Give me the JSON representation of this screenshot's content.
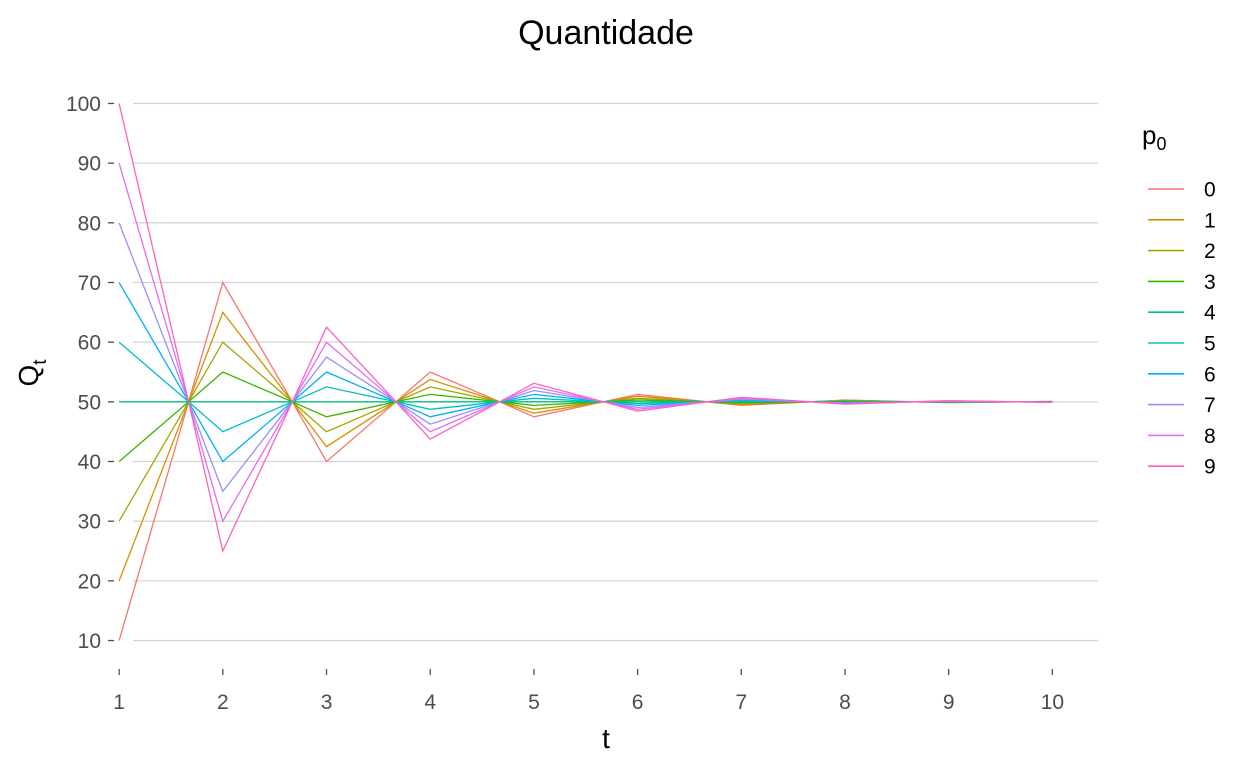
{
  "chart_data": {
    "type": "line",
    "title": "Quantidade",
    "xlabel": "t",
    "ylabel_main": "Q",
    "ylabel_sub": "t",
    "legend_title_main": "p",
    "legend_title_sub": "0",
    "legend_position": "right",
    "grid": "horizontal-major",
    "x_ticks": [
      1,
      2,
      3,
      4,
      5,
      6,
      7,
      8,
      9,
      10
    ],
    "y_ticks": [
      10,
      20,
      30,
      40,
      50,
      60,
      70,
      80,
      90,
      100
    ],
    "xlim": [
      0.96,
      10.44
    ],
    "ylim": [
      5.4,
      104.6
    ],
    "series": [
      {
        "name": "0",
        "color": "#F8766D",
        "points": [
          [
            1,
            10
          ],
          [
            1.67,
            50
          ],
          [
            2,
            70
          ],
          [
            2.67,
            50
          ],
          [
            3,
            40
          ],
          [
            3.67,
            50
          ],
          [
            4,
            55
          ],
          [
            4.67,
            50
          ],
          [
            5,
            47.5
          ],
          [
            5.67,
            50
          ],
          [
            6,
            51.25
          ],
          [
            6.67,
            50
          ],
          [
            7,
            49.4
          ],
          [
            7.67,
            50
          ],
          [
            8,
            50.3
          ],
          [
            8.67,
            50
          ],
          [
            9,
            49.85
          ],
          [
            9.67,
            50
          ],
          [
            10,
            50.08
          ]
        ]
      },
      {
        "name": "1",
        "color": "#D89000",
        "points": [
          [
            1,
            20
          ],
          [
            1.67,
            50
          ],
          [
            2,
            65
          ],
          [
            2.67,
            50
          ],
          [
            3,
            42.5
          ],
          [
            3.67,
            50
          ],
          [
            4,
            53.75
          ],
          [
            4.67,
            50
          ],
          [
            5,
            48.1
          ],
          [
            5.67,
            50
          ],
          [
            6,
            50.95
          ],
          [
            6.67,
            50
          ],
          [
            7,
            49.5
          ],
          [
            7.67,
            50
          ],
          [
            8,
            50.25
          ],
          [
            8.67,
            50
          ],
          [
            9,
            49.9
          ],
          [
            9.67,
            50
          ],
          [
            10,
            50.06
          ]
        ]
      },
      {
        "name": "2",
        "color": "#A3A500",
        "points": [
          [
            1,
            30
          ],
          [
            1.67,
            50
          ],
          [
            2,
            60
          ],
          [
            2.67,
            50
          ],
          [
            3,
            45
          ],
          [
            3.67,
            50
          ],
          [
            4,
            52.5
          ],
          [
            4.67,
            50
          ],
          [
            5,
            48.75
          ],
          [
            5.67,
            50
          ],
          [
            6,
            50.6
          ],
          [
            6.67,
            50
          ],
          [
            7,
            49.7
          ],
          [
            7.67,
            50
          ],
          [
            8,
            50.15
          ],
          [
            8.67,
            50
          ],
          [
            9,
            49.92
          ],
          [
            9.67,
            50
          ],
          [
            10,
            50.04
          ]
        ]
      },
      {
        "name": "3",
        "color": "#39B600",
        "points": [
          [
            1,
            40
          ],
          [
            1.67,
            50
          ],
          [
            2,
            55
          ],
          [
            2.67,
            50
          ],
          [
            3,
            47.5
          ],
          [
            3.67,
            50
          ],
          [
            4,
            51.25
          ],
          [
            4.67,
            50
          ],
          [
            5,
            49.4
          ],
          [
            5.67,
            50
          ],
          [
            6,
            50.3
          ],
          [
            6.67,
            50
          ],
          [
            7,
            49.85
          ],
          [
            7.67,
            50
          ],
          [
            8,
            50.08
          ],
          [
            8.67,
            50
          ],
          [
            9,
            49.96
          ],
          [
            9.67,
            50
          ],
          [
            10,
            50.02
          ]
        ]
      },
      {
        "name": "4",
        "color": "#00BF7D",
        "points": [
          [
            1,
            50
          ],
          [
            1.67,
            50
          ],
          [
            2,
            50
          ],
          [
            2.67,
            50
          ],
          [
            3,
            50
          ],
          [
            3.67,
            50
          ],
          [
            4,
            50
          ],
          [
            4.67,
            50
          ],
          [
            5,
            50
          ],
          [
            5.67,
            50
          ],
          [
            6,
            50
          ],
          [
            6.67,
            50
          ],
          [
            7,
            50
          ],
          [
            7.67,
            50
          ],
          [
            8,
            50
          ],
          [
            8.67,
            50
          ],
          [
            9,
            50
          ],
          [
            9.67,
            50
          ],
          [
            10,
            50
          ]
        ]
      },
      {
        "name": "5",
        "color": "#00BFC4",
        "points": [
          [
            1,
            60
          ],
          [
            1.67,
            50
          ],
          [
            2,
            45
          ],
          [
            2.67,
            50
          ],
          [
            3,
            52.5
          ],
          [
            3.67,
            50
          ],
          [
            4,
            48.75
          ],
          [
            4.67,
            50
          ],
          [
            5,
            50.6
          ],
          [
            5.67,
            50
          ],
          [
            6,
            49.7
          ],
          [
            6.67,
            50
          ],
          [
            7,
            50.15
          ],
          [
            7.67,
            50
          ],
          [
            8,
            49.92
          ],
          [
            8.67,
            50
          ],
          [
            9,
            50.04
          ],
          [
            9.67,
            50
          ],
          [
            10,
            49.98
          ]
        ]
      },
      {
        "name": "6",
        "color": "#00B0F6",
        "points": [
          [
            1,
            70
          ],
          [
            1.67,
            50
          ],
          [
            2,
            40
          ],
          [
            2.67,
            50
          ],
          [
            3,
            55
          ],
          [
            3.67,
            50
          ],
          [
            4,
            47.5
          ],
          [
            4.67,
            50
          ],
          [
            5,
            51.25
          ],
          [
            5.67,
            50
          ],
          [
            6,
            49.4
          ],
          [
            6.67,
            50
          ],
          [
            7,
            50.3
          ],
          [
            7.67,
            50
          ],
          [
            8,
            49.85
          ],
          [
            8.67,
            50
          ],
          [
            9,
            50.08
          ],
          [
            9.67,
            50
          ],
          [
            10,
            49.96
          ]
        ]
      },
      {
        "name": "7",
        "color": "#9590FF",
        "points": [
          [
            1,
            80
          ],
          [
            1.67,
            50
          ],
          [
            2,
            35
          ],
          [
            2.67,
            50
          ],
          [
            3,
            57.5
          ],
          [
            3.67,
            50
          ],
          [
            4,
            46.25
          ],
          [
            4.67,
            50
          ],
          [
            5,
            51.9
          ],
          [
            5.67,
            50
          ],
          [
            6,
            49.05
          ],
          [
            6.67,
            50
          ],
          [
            7,
            50.45
          ],
          [
            7.67,
            50
          ],
          [
            8,
            49.75
          ],
          [
            8.67,
            50
          ],
          [
            9,
            50.1
          ],
          [
            9.67,
            50
          ],
          [
            10,
            49.95
          ]
        ]
      },
      {
        "name": "8",
        "color": "#E76BF3",
        "points": [
          [
            1,
            90
          ],
          [
            1.67,
            50
          ],
          [
            2,
            30
          ],
          [
            2.67,
            50
          ],
          [
            3,
            60
          ],
          [
            3.67,
            50
          ],
          [
            4,
            45
          ],
          [
            4.67,
            50
          ],
          [
            5,
            52.5
          ],
          [
            5.67,
            50
          ],
          [
            6,
            48.75
          ],
          [
            6.67,
            50
          ],
          [
            7,
            50.6
          ],
          [
            7.67,
            50
          ],
          [
            8,
            49.7
          ],
          [
            8.67,
            50
          ],
          [
            9,
            50.15
          ],
          [
            9.67,
            50
          ],
          [
            10,
            49.92
          ]
        ]
      },
      {
        "name": "9",
        "color": "#FF62BC",
        "points": [
          [
            1,
            100
          ],
          [
            1.67,
            50
          ],
          [
            2,
            25
          ],
          [
            2.67,
            50
          ],
          [
            3,
            62.5
          ],
          [
            3.67,
            50
          ],
          [
            4,
            43.75
          ],
          [
            4.67,
            50
          ],
          [
            5,
            53.1
          ],
          [
            5.67,
            50
          ],
          [
            6,
            48.45
          ],
          [
            6.67,
            50
          ],
          [
            7,
            50.75
          ],
          [
            7.67,
            50
          ],
          [
            8,
            49.6
          ],
          [
            8.67,
            50
          ],
          [
            9,
            50.2
          ],
          [
            9.67,
            50
          ],
          [
            10,
            49.9
          ]
        ]
      }
    ]
  }
}
